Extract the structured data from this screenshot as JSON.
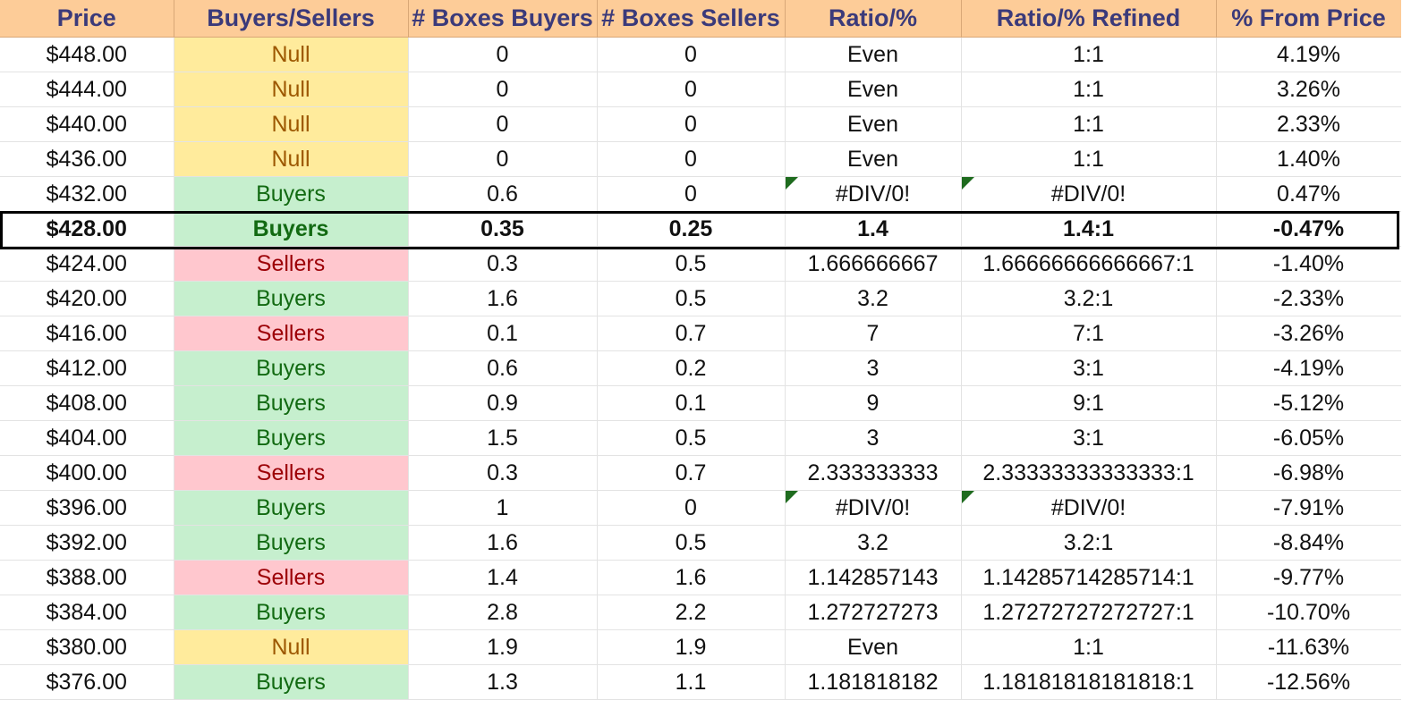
{
  "columns": [
    "Price",
    "Buyers/Sellers",
    "# Boxes Buyers",
    "# Boxes Sellers",
    "Ratio/%",
    "Ratio/% Refined",
    "% From Price"
  ],
  "highlighted_row_index": 5,
  "colors": {
    "header_bg": "#fdcc98",
    "header_text": "#3b3a7a",
    "buyers_bg": "#c6efce",
    "buyers_text": "#126a12",
    "sellers_bg": "#ffc7ce",
    "sellers_text": "#9c0006",
    "null_bg": "#ffeb9c",
    "null_text": "#9c5700",
    "error_flag": "#1e6b1e"
  },
  "rows": [
    {
      "price": "$448.00",
      "side": "Null",
      "buyers": "0",
      "sellers": "0",
      "ratio": "Even",
      "refined": "1:1",
      "from_price": "4.19%"
    },
    {
      "price": "$444.00",
      "side": "Null",
      "buyers": "0",
      "sellers": "0",
      "ratio": "Even",
      "refined": "1:1",
      "from_price": "3.26%"
    },
    {
      "price": "$440.00",
      "side": "Null",
      "buyers": "0",
      "sellers": "0",
      "ratio": "Even",
      "refined": "1:1",
      "from_price": "2.33%"
    },
    {
      "price": "$436.00",
      "side": "Null",
      "buyers": "0",
      "sellers": "0",
      "ratio": "Even",
      "refined": "1:1",
      "from_price": "1.40%"
    },
    {
      "price": "$432.00",
      "side": "Buyers",
      "buyers": "0.6",
      "sellers": "0",
      "ratio": "#DIV/0!",
      "refined": "#DIV/0!",
      "from_price": "0.47%",
      "error": true
    },
    {
      "price": "$428.00",
      "side": "Buyers",
      "buyers": "0.35",
      "sellers": "0.25",
      "ratio": "1.4",
      "refined": "1.4:1",
      "from_price": "-0.47%"
    },
    {
      "price": "$424.00",
      "side": "Sellers",
      "buyers": "0.3",
      "sellers": "0.5",
      "ratio": "1.666666667",
      "refined": "1.66666666666667:1",
      "from_price": "-1.40%"
    },
    {
      "price": "$420.00",
      "side": "Buyers",
      "buyers": "1.6",
      "sellers": "0.5",
      "ratio": "3.2",
      "refined": "3.2:1",
      "from_price": "-2.33%"
    },
    {
      "price": "$416.00",
      "side": "Sellers",
      "buyers": "0.1",
      "sellers": "0.7",
      "ratio": "7",
      "refined": "7:1",
      "from_price": "-3.26%"
    },
    {
      "price": "$412.00",
      "side": "Buyers",
      "buyers": "0.6",
      "sellers": "0.2",
      "ratio": "3",
      "refined": "3:1",
      "from_price": "-4.19%"
    },
    {
      "price": "$408.00",
      "side": "Buyers",
      "buyers": "0.9",
      "sellers": "0.1",
      "ratio": "9",
      "refined": "9:1",
      "from_price": "-5.12%"
    },
    {
      "price": "$404.00",
      "side": "Buyers",
      "buyers": "1.5",
      "sellers": "0.5",
      "ratio": "3",
      "refined": "3:1",
      "from_price": "-6.05%"
    },
    {
      "price": "$400.00",
      "side": "Sellers",
      "buyers": "0.3",
      "sellers": "0.7",
      "ratio": "2.333333333",
      "refined": "2.33333333333333:1",
      "from_price": "-6.98%"
    },
    {
      "price": "$396.00",
      "side": "Buyers",
      "buyers": "1",
      "sellers": "0",
      "ratio": "#DIV/0!",
      "refined": "#DIV/0!",
      "from_price": "-7.91%",
      "error": true
    },
    {
      "price": "$392.00",
      "side": "Buyers",
      "buyers": "1.6",
      "sellers": "0.5",
      "ratio": "3.2",
      "refined": "3.2:1",
      "from_price": "-8.84%"
    },
    {
      "price": "$388.00",
      "side": "Sellers",
      "buyers": "1.4",
      "sellers": "1.6",
      "ratio": "1.142857143",
      "refined": "1.14285714285714:1",
      "from_price": "-9.77%"
    },
    {
      "price": "$384.00",
      "side": "Buyers",
      "buyers": "2.8",
      "sellers": "2.2",
      "ratio": "1.272727273",
      "refined": "1.27272727272727:1",
      "from_price": "-10.70%"
    },
    {
      "price": "$380.00",
      "side": "Null",
      "buyers": "1.9",
      "sellers": "1.9",
      "ratio": "Even",
      "refined": "1:1",
      "from_price": "-11.63%"
    },
    {
      "price": "$376.00",
      "side": "Buyers",
      "buyers": "1.3",
      "sellers": "1.1",
      "ratio": "1.181818182",
      "refined": "1.18181818181818:1",
      "from_price": "-12.56%"
    }
  ]
}
